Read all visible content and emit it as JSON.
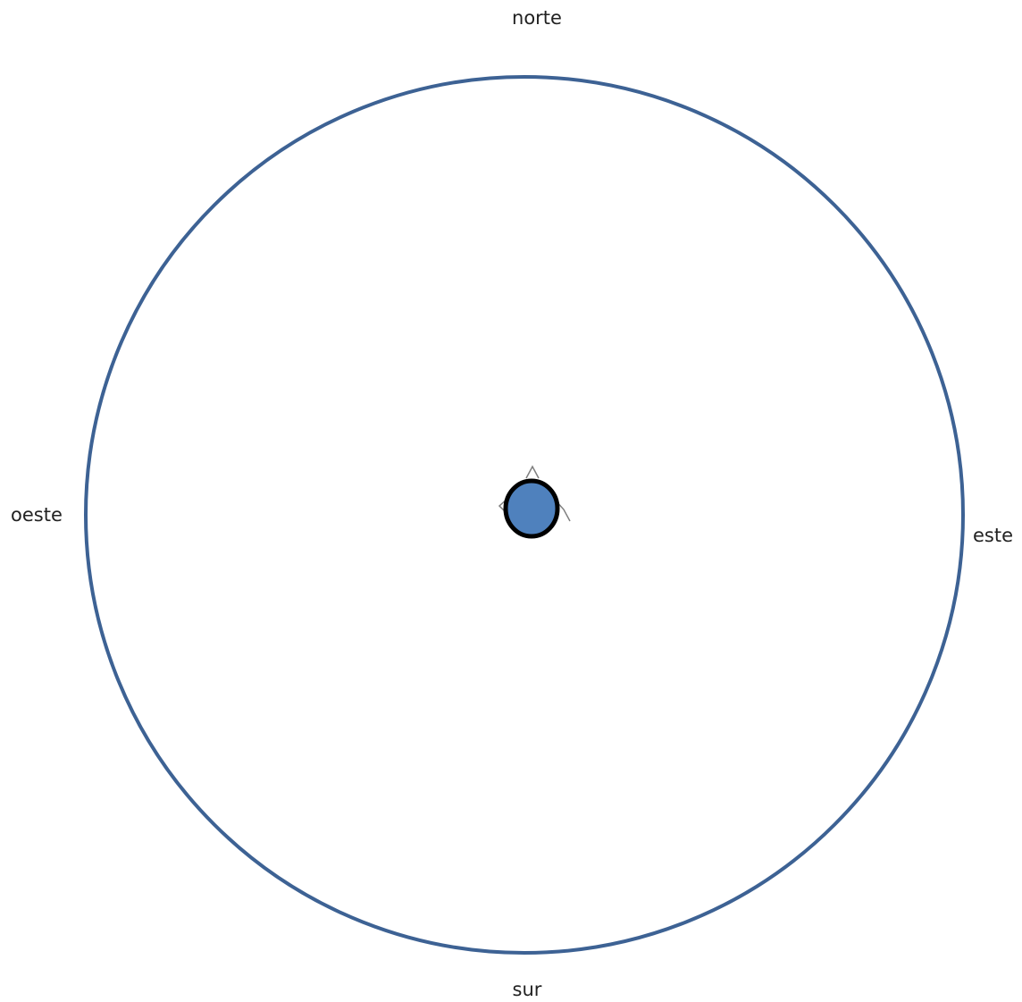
{
  "compass": {
    "north_label": "norte",
    "south_label": "sur",
    "east_label": "este",
    "west_label": "oeste"
  },
  "colors": {
    "horizon_ring": "#3d6294",
    "observer_fill": "#4f81bd",
    "observer_stroke": "#000000",
    "tick_marks": "#7f7f7f"
  }
}
